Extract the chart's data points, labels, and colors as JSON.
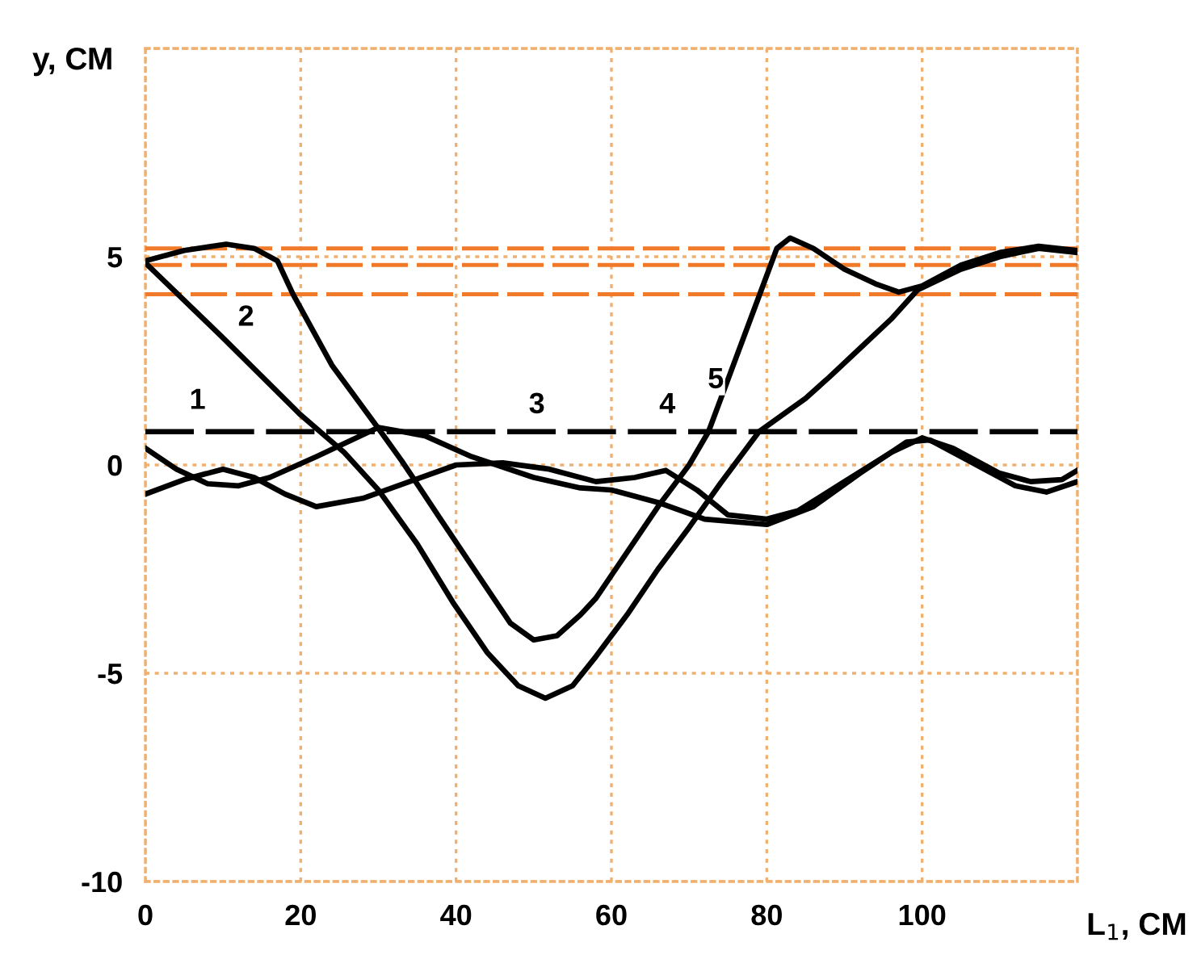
{
  "chart_data": {
    "type": "line",
    "xlabel": "L$_{1}$, СМ",
    "ylabel": "y, СМ",
    "xlim": [
      0,
      120
    ],
    "ylim": [
      -10,
      10
    ],
    "xticks": [
      0,
      20,
      40,
      60,
      80,
      100,
      {
        "value": 120,
        "label": null
      }
    ],
    "yticks": [
      -10,
      -5,
      0,
      5,
      {
        "value": 10,
        "label": null
      }
    ],
    "grid": true,
    "marker": "none",
    "series": [
      {
        "color": "#f07a2a",
        "line_style": "dashed",
        "x": [
          0,
          120
        ],
        "values": [
          5.2,
          5.2
        ]
      },
      {
        "color": "#f07a2a",
        "line_style": "dashed",
        "x": [
          0,
          120
        ],
        "values": [
          4.8,
          4.8
        ]
      },
      {
        "color": "#f07a2a",
        "line_style": "dashed",
        "x": [
          0,
          120
        ],
        "values": [
          4.1,
          4.1
        ]
      },
      {
        "color": "#000000",
        "line_style": "dashed",
        "x": [
          0,
          120
        ],
        "values": [
          0.8,
          0.8
        ]
      },
      {
        "color": "#000000",
        "line_style": "solid",
        "x": [
          0,
          10,
          20,
          25.6,
          30,
          35,
          39.6,
          44,
          48,
          51.5,
          55,
          58,
          62,
          66,
          70,
          74,
          79,
          85,
          88,
          92,
          96,
          99.4,
          105,
          110,
          115,
          120
        ],
        "values": [
          4.85,
          3.05,
          1.2,
          0.3,
          -0.6,
          -1.9,
          -3.3,
          -4.5,
          -5.3,
          -5.6,
          -5.3,
          -4.6,
          -3.6,
          -2.5,
          -1.5,
          -0.45,
          0.8,
          1.6,
          2.1,
          2.8,
          3.5,
          4.2,
          4.7,
          5.0,
          5.2,
          5.1
        ]
      },
      {
        "color": "#000000",
        "line_style": "solid",
        "x": [
          0,
          4,
          8,
          12,
          16,
          22,
          30,
          36,
          42,
          50,
          56,
          60,
          66,
          72,
          80,
          86,
          92,
          98,
          101,
          106,
          112,
          116,
          120
        ],
        "values": [
          0.4,
          -0.1,
          -0.45,
          -0.5,
          -0.3,
          0.2,
          0.9,
          0.7,
          0.2,
          -0.3,
          -0.55,
          -0.6,
          -0.9,
          -1.3,
          -1.43,
          -1.0,
          -0.2,
          0.55,
          0.6,
          0.1,
          -0.5,
          -0.65,
          -0.4
        ]
      },
      {
        "color": "#000000",
        "line_style": "solid",
        "x": [
          0,
          5,
          10,
          14,
          18,
          22,
          28,
          34,
          40,
          46,
          52,
          58,
          63,
          67,
          71,
          75,
          80,
          84,
          90,
          96,
          100,
          104,
          110,
          114,
          118,
          120
        ],
        "values": [
          -0.7,
          -0.35,
          -0.1,
          -0.3,
          -0.7,
          -1.0,
          -0.8,
          -0.4,
          0.0,
          0.05,
          -0.1,
          -0.4,
          -0.3,
          -0.13,
          -0.6,
          -1.2,
          -1.3,
          -1.1,
          -0.4,
          0.3,
          0.65,
          0.4,
          -0.2,
          -0.4,
          -0.35,
          -0.13
        ]
      },
      {
        "color": "#000000",
        "line_style": "solid",
        "x": [
          0,
          5,
          10.4,
          14,
          17,
          19,
          24,
          30.3,
          33,
          38,
          43.75,
          47,
          50,
          53,
          56,
          58,
          62,
          66,
          70,
          72.5,
          76,
          79,
          81.3,
          83,
          86,
          90,
          94,
          97,
          100,
          105,
          110,
          115,
          120
        ],
        "values": [
          4.9,
          5.15,
          5.3,
          5.2,
          4.9,
          4.1,
          2.4,
          0.8,
          0.1,
          -1.3,
          -2.9,
          -3.8,
          -4.2,
          -4.1,
          -3.6,
          -3.2,
          -2.1,
          -1.0,
          0.0,
          0.8,
          2.55,
          4.05,
          5.2,
          5.45,
          5.2,
          4.7,
          4.35,
          4.15,
          4.3,
          4.8,
          5.1,
          5.25,
          5.15
        ]
      }
    ],
    "annotations": [
      "1",
      "2",
      "3",
      "4",
      "5"
    ]
  }
}
